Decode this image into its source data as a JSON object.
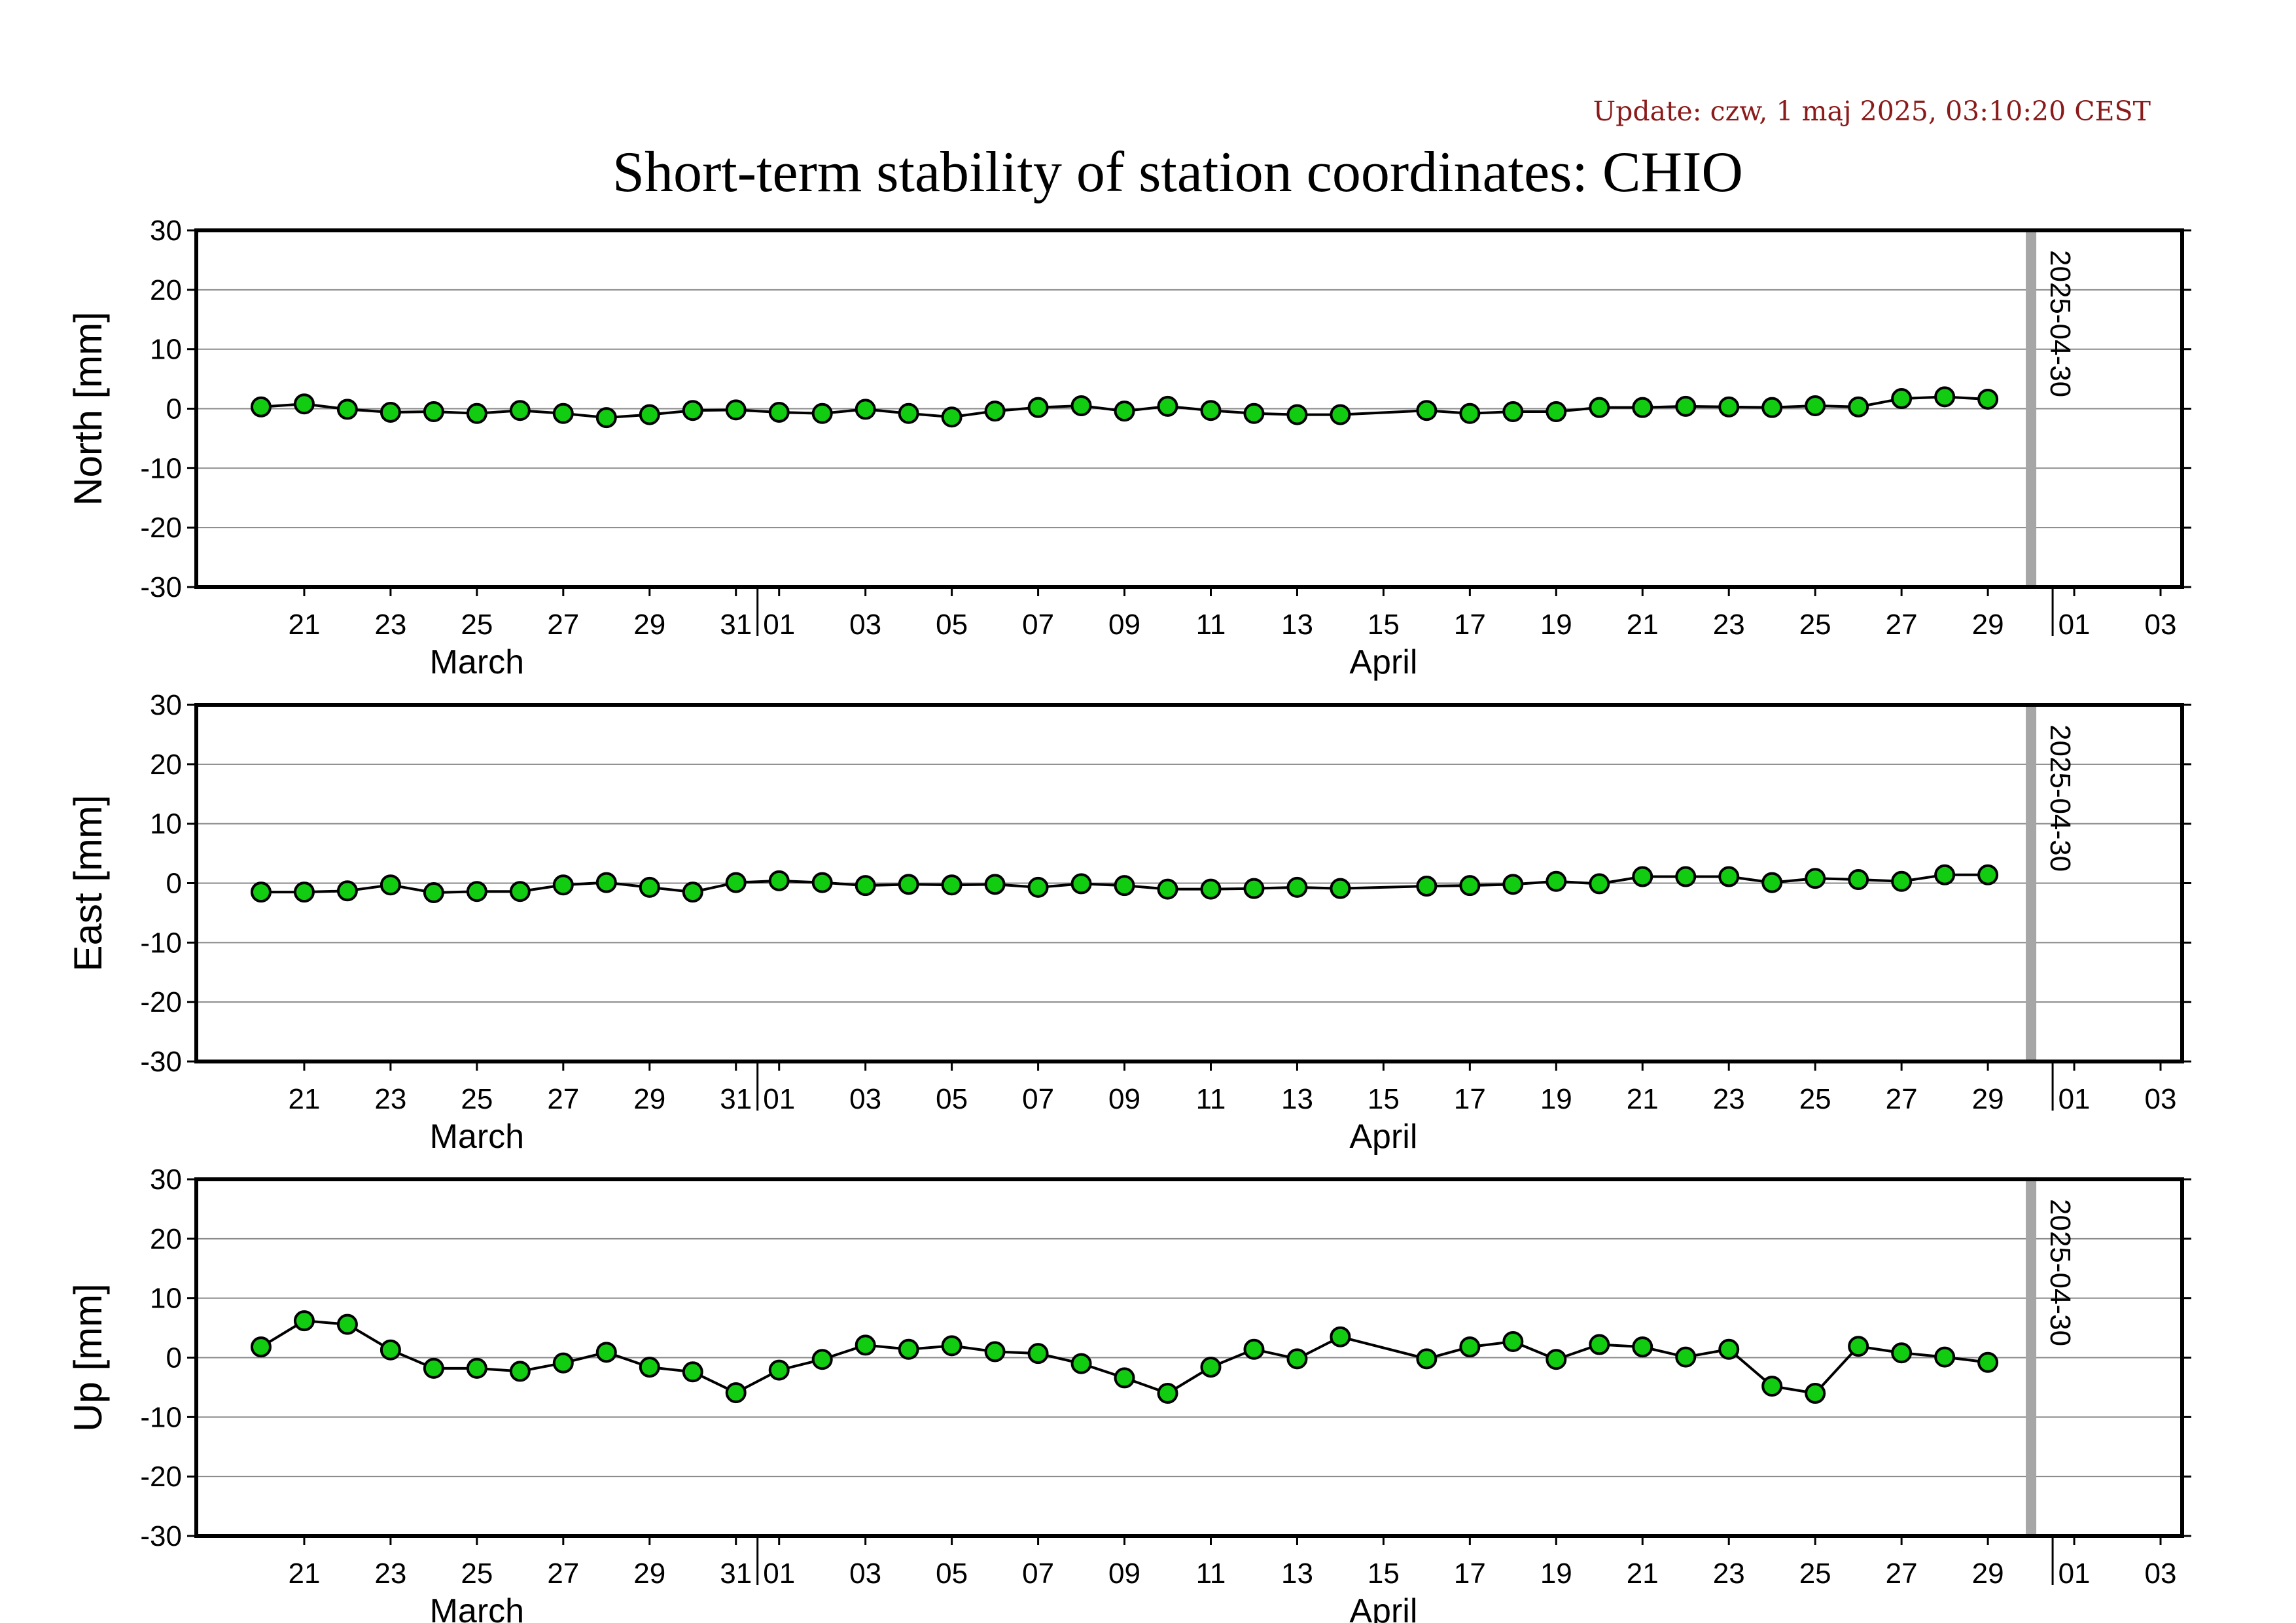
{
  "update_text": "Update: czw, 1 maj 2025, 03:10:20 CEST",
  "title": "Short-term stability of station coordinates: CHIO",
  "colors": {
    "marker_fill": "#11cc11",
    "marker_stroke": "#000000",
    "line": "#000000",
    "grid": "#888888",
    "vline": "#a6a6a6",
    "update": "#8b1a1a"
  },
  "chart_data": {
    "type": "line",
    "x_range": [
      "2025-03-19",
      "2025-05-04"
    ],
    "ylim": [
      -30,
      30
    ],
    "y_ticks": [
      30,
      20,
      10,
      0,
      -10,
      -20,
      -30
    ],
    "x_tick_labels": [
      "21",
      "23",
      "25",
      "27",
      "29",
      "31",
      "01",
      "03",
      "05",
      "07",
      "09",
      "11",
      "13",
      "15",
      "17",
      "19",
      "21",
      "23",
      "25",
      "27",
      "29",
      "01",
      "03"
    ],
    "month_labels": [
      "March",
      "April"
    ],
    "marker_date": "2025-04-30",
    "marker_label": "2025-04-30",
    "grid": true,
    "panels": [
      {
        "ylabel": "North [mm]",
        "points": [
          [
            "2025-03-20",
            0.3
          ],
          [
            "2025-03-21",
            0.8
          ],
          [
            "2025-03-22",
            -0.1
          ],
          [
            "2025-03-23",
            -0.6
          ],
          [
            "2025-03-24",
            -0.5
          ],
          [
            "2025-03-25",
            -0.8
          ],
          [
            "2025-03-26",
            -0.3
          ],
          [
            "2025-03-27",
            -0.8
          ],
          [
            "2025-03-28",
            -1.5
          ],
          [
            "2025-03-29",
            -1.0
          ],
          [
            "2025-03-30",
            -0.3
          ],
          [
            "2025-03-31",
            -0.2
          ],
          [
            "2025-04-01",
            -0.6
          ],
          [
            "2025-04-02",
            -0.8
          ],
          [
            "2025-04-03",
            -0.1
          ],
          [
            "2025-04-04",
            -0.8
          ],
          [
            "2025-04-05",
            -1.4
          ],
          [
            "2025-04-06",
            -0.4
          ],
          [
            "2025-04-07",
            0.2
          ],
          [
            "2025-04-08",
            0.5
          ],
          [
            "2025-04-09",
            -0.4
          ],
          [
            "2025-04-10",
            0.4
          ],
          [
            "2025-04-11",
            -0.3
          ],
          [
            "2025-04-12",
            -0.8
          ],
          [
            "2025-04-13",
            -1.0
          ],
          [
            "2025-04-14",
            -1.0
          ],
          [
            "2025-04-16",
            -0.3
          ],
          [
            "2025-04-17",
            -0.8
          ],
          [
            "2025-04-18",
            -0.5
          ],
          [
            "2025-04-19",
            -0.5
          ],
          [
            "2025-04-20",
            0.2
          ],
          [
            "2025-04-21",
            0.2
          ],
          [
            "2025-04-22",
            0.4
          ],
          [
            "2025-04-23",
            0.3
          ],
          [
            "2025-04-24",
            0.2
          ],
          [
            "2025-04-25",
            0.5
          ],
          [
            "2025-04-26",
            0.3
          ],
          [
            "2025-04-27",
            1.7
          ],
          [
            "2025-04-28",
            2.0
          ],
          [
            "2025-04-29",
            1.6
          ]
        ]
      },
      {
        "ylabel": "East [mm]",
        "points": [
          [
            "2025-03-20",
            -1.5
          ],
          [
            "2025-03-21",
            -1.5
          ],
          [
            "2025-03-22",
            -1.3
          ],
          [
            "2025-03-23",
            -0.3
          ],
          [
            "2025-03-24",
            -1.6
          ],
          [
            "2025-03-25",
            -1.4
          ],
          [
            "2025-03-26",
            -1.4
          ],
          [
            "2025-03-27",
            -0.3
          ],
          [
            "2025-03-28",
            0.1
          ],
          [
            "2025-03-29",
            -0.7
          ],
          [
            "2025-03-30",
            -1.5
          ],
          [
            "2025-03-31",
            0.1
          ],
          [
            "2025-04-01",
            0.4
          ],
          [
            "2025-04-02",
            0.1
          ],
          [
            "2025-04-03",
            -0.4
          ],
          [
            "2025-04-04",
            -0.2
          ],
          [
            "2025-04-05",
            -0.3
          ],
          [
            "2025-04-06",
            -0.2
          ],
          [
            "2025-04-07",
            -0.7
          ],
          [
            "2025-04-08",
            -0.1
          ],
          [
            "2025-04-09",
            -0.4
          ],
          [
            "2025-04-10",
            -1.0
          ],
          [
            "2025-04-11",
            -1.0
          ],
          [
            "2025-04-12",
            -0.9
          ],
          [
            "2025-04-13",
            -0.7
          ],
          [
            "2025-04-14",
            -0.9
          ],
          [
            "2025-04-16",
            -0.5
          ],
          [
            "2025-04-17",
            -0.4
          ],
          [
            "2025-04-18",
            -0.2
          ],
          [
            "2025-04-19",
            0.3
          ],
          [
            "2025-04-20",
            -0.1
          ],
          [
            "2025-04-21",
            1.1
          ],
          [
            "2025-04-22",
            1.1
          ],
          [
            "2025-04-23",
            1.1
          ],
          [
            "2025-04-24",
            0.1
          ],
          [
            "2025-04-25",
            0.8
          ],
          [
            "2025-04-26",
            0.6
          ],
          [
            "2025-04-27",
            0.3
          ],
          [
            "2025-04-28",
            1.4
          ],
          [
            "2025-04-29",
            1.4
          ]
        ]
      },
      {
        "ylabel": "Up [mm]",
        "points": [
          [
            "2025-03-20",
            1.8
          ],
          [
            "2025-03-21",
            6.2
          ],
          [
            "2025-03-22",
            5.6
          ],
          [
            "2025-03-23",
            1.3
          ],
          [
            "2025-03-24",
            -1.8
          ],
          [
            "2025-03-25",
            -1.8
          ],
          [
            "2025-03-26",
            -2.3
          ],
          [
            "2025-03-27",
            -0.9
          ],
          [
            "2025-03-28",
            0.9
          ],
          [
            "2025-03-29",
            -1.6
          ],
          [
            "2025-03-30",
            -2.4
          ],
          [
            "2025-03-31",
            -5.9
          ],
          [
            "2025-04-01",
            -2.1
          ],
          [
            "2025-04-02",
            -0.3
          ],
          [
            "2025-04-03",
            2.1
          ],
          [
            "2025-04-04",
            1.4
          ],
          [
            "2025-04-05",
            2.0
          ],
          [
            "2025-04-06",
            1.0
          ],
          [
            "2025-04-07",
            0.7
          ],
          [
            "2025-04-08",
            -1.0
          ],
          [
            "2025-04-09",
            -3.4
          ],
          [
            "2025-04-10",
            -6.0
          ],
          [
            "2025-04-11",
            -1.6
          ],
          [
            "2025-04-12",
            1.4
          ],
          [
            "2025-04-13",
            -0.2
          ],
          [
            "2025-04-14",
            3.5
          ],
          [
            "2025-04-16",
            -0.2
          ],
          [
            "2025-04-17",
            1.8
          ],
          [
            "2025-04-18",
            2.7
          ],
          [
            "2025-04-19",
            -0.3
          ],
          [
            "2025-04-20",
            2.2
          ],
          [
            "2025-04-21",
            1.8
          ],
          [
            "2025-04-22",
            0.1
          ],
          [
            "2025-04-23",
            1.4
          ],
          [
            "2025-04-24",
            -4.8
          ],
          [
            "2025-04-25",
            -6.0
          ],
          [
            "2025-04-26",
            1.9
          ],
          [
            "2025-04-27",
            0.8
          ],
          [
            "2025-04-28",
            0.1
          ],
          [
            "2025-04-29",
            -0.8
          ]
        ]
      }
    ]
  }
}
